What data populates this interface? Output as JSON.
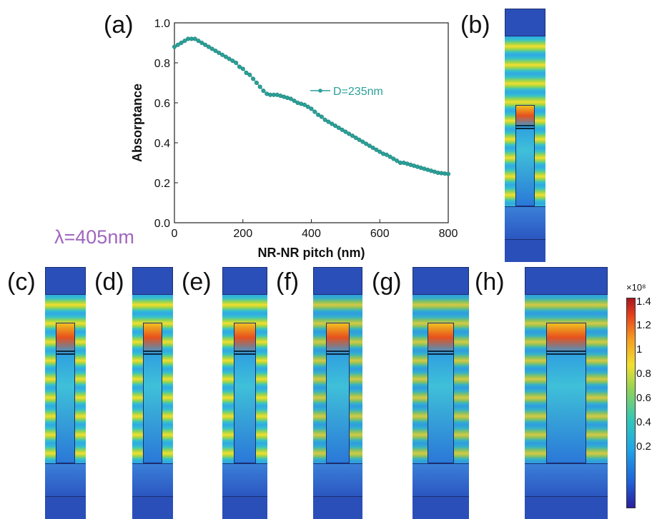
{
  "panel_labels": [
    "(a)",
    "(b)",
    "(c)",
    "(d)",
    "(e)",
    "(f)",
    "(g)",
    "(h)"
  ],
  "wavelength_label": "λ=405nm",
  "colorbar": {
    "exponent": "×10⁸",
    "ticks": [
      "1.4",
      "1.2",
      "1",
      "0.8",
      "0.6",
      "0.4",
      "0.2"
    ]
  },
  "chart_data": {
    "type": "scatter",
    "xlabel": "NR-NR pitch (nm)",
    "ylabel": "Absorptance",
    "xlim": [
      0,
      800
    ],
    "ylim": [
      0.0,
      1.0
    ],
    "xticks": [
      "0",
      "200",
      "400",
      "600",
      "800"
    ],
    "yticks": [
      "0.0",
      "0.2",
      "0.4",
      "0.6",
      "0.8",
      "1.0"
    ],
    "legend": "right",
    "series": [
      {
        "name": "D=235nm",
        "color": "#2aa198",
        "x": [
          0,
          10,
          20,
          30,
          40,
          50,
          60,
          70,
          80,
          90,
          100,
          110,
          120,
          130,
          140,
          150,
          160,
          170,
          180,
          190,
          200,
          210,
          220,
          230,
          240,
          250,
          260,
          270,
          280,
          290,
          300,
          310,
          320,
          330,
          340,
          350,
          360,
          370,
          380,
          390,
          400,
          410,
          420,
          430,
          440,
          450,
          460,
          470,
          480,
          490,
          500,
          510,
          520,
          530,
          540,
          550,
          560,
          570,
          580,
          590,
          600,
          610,
          620,
          630,
          640,
          650,
          660,
          670,
          680,
          690,
          700,
          710,
          720,
          730,
          740,
          750,
          760,
          770,
          780,
          790,
          800
        ],
        "y": [
          0.88,
          0.89,
          0.9,
          0.91,
          0.92,
          0.92,
          0.92,
          0.91,
          0.9,
          0.89,
          0.88,
          0.87,
          0.86,
          0.85,
          0.84,
          0.83,
          0.82,
          0.81,
          0.8,
          0.78,
          0.77,
          0.75,
          0.74,
          0.72,
          0.7,
          0.68,
          0.66,
          0.645,
          0.64,
          0.64,
          0.64,
          0.635,
          0.63,
          0.625,
          0.62,
          0.61,
          0.6,
          0.595,
          0.59,
          0.58,
          0.57,
          0.555,
          0.54,
          0.53,
          0.515,
          0.505,
          0.495,
          0.485,
          0.475,
          0.465,
          0.455,
          0.445,
          0.435,
          0.425,
          0.415,
          0.405,
          0.395,
          0.385,
          0.375,
          0.365,
          0.355,
          0.345,
          0.34,
          0.33,
          0.32,
          0.31,
          0.3,
          0.3,
          0.295,
          0.29,
          0.285,
          0.28,
          0.275,
          0.27,
          0.265,
          0.26,
          0.255,
          0.25,
          0.248,
          0.246,
          0.244
        ]
      }
    ]
  }
}
